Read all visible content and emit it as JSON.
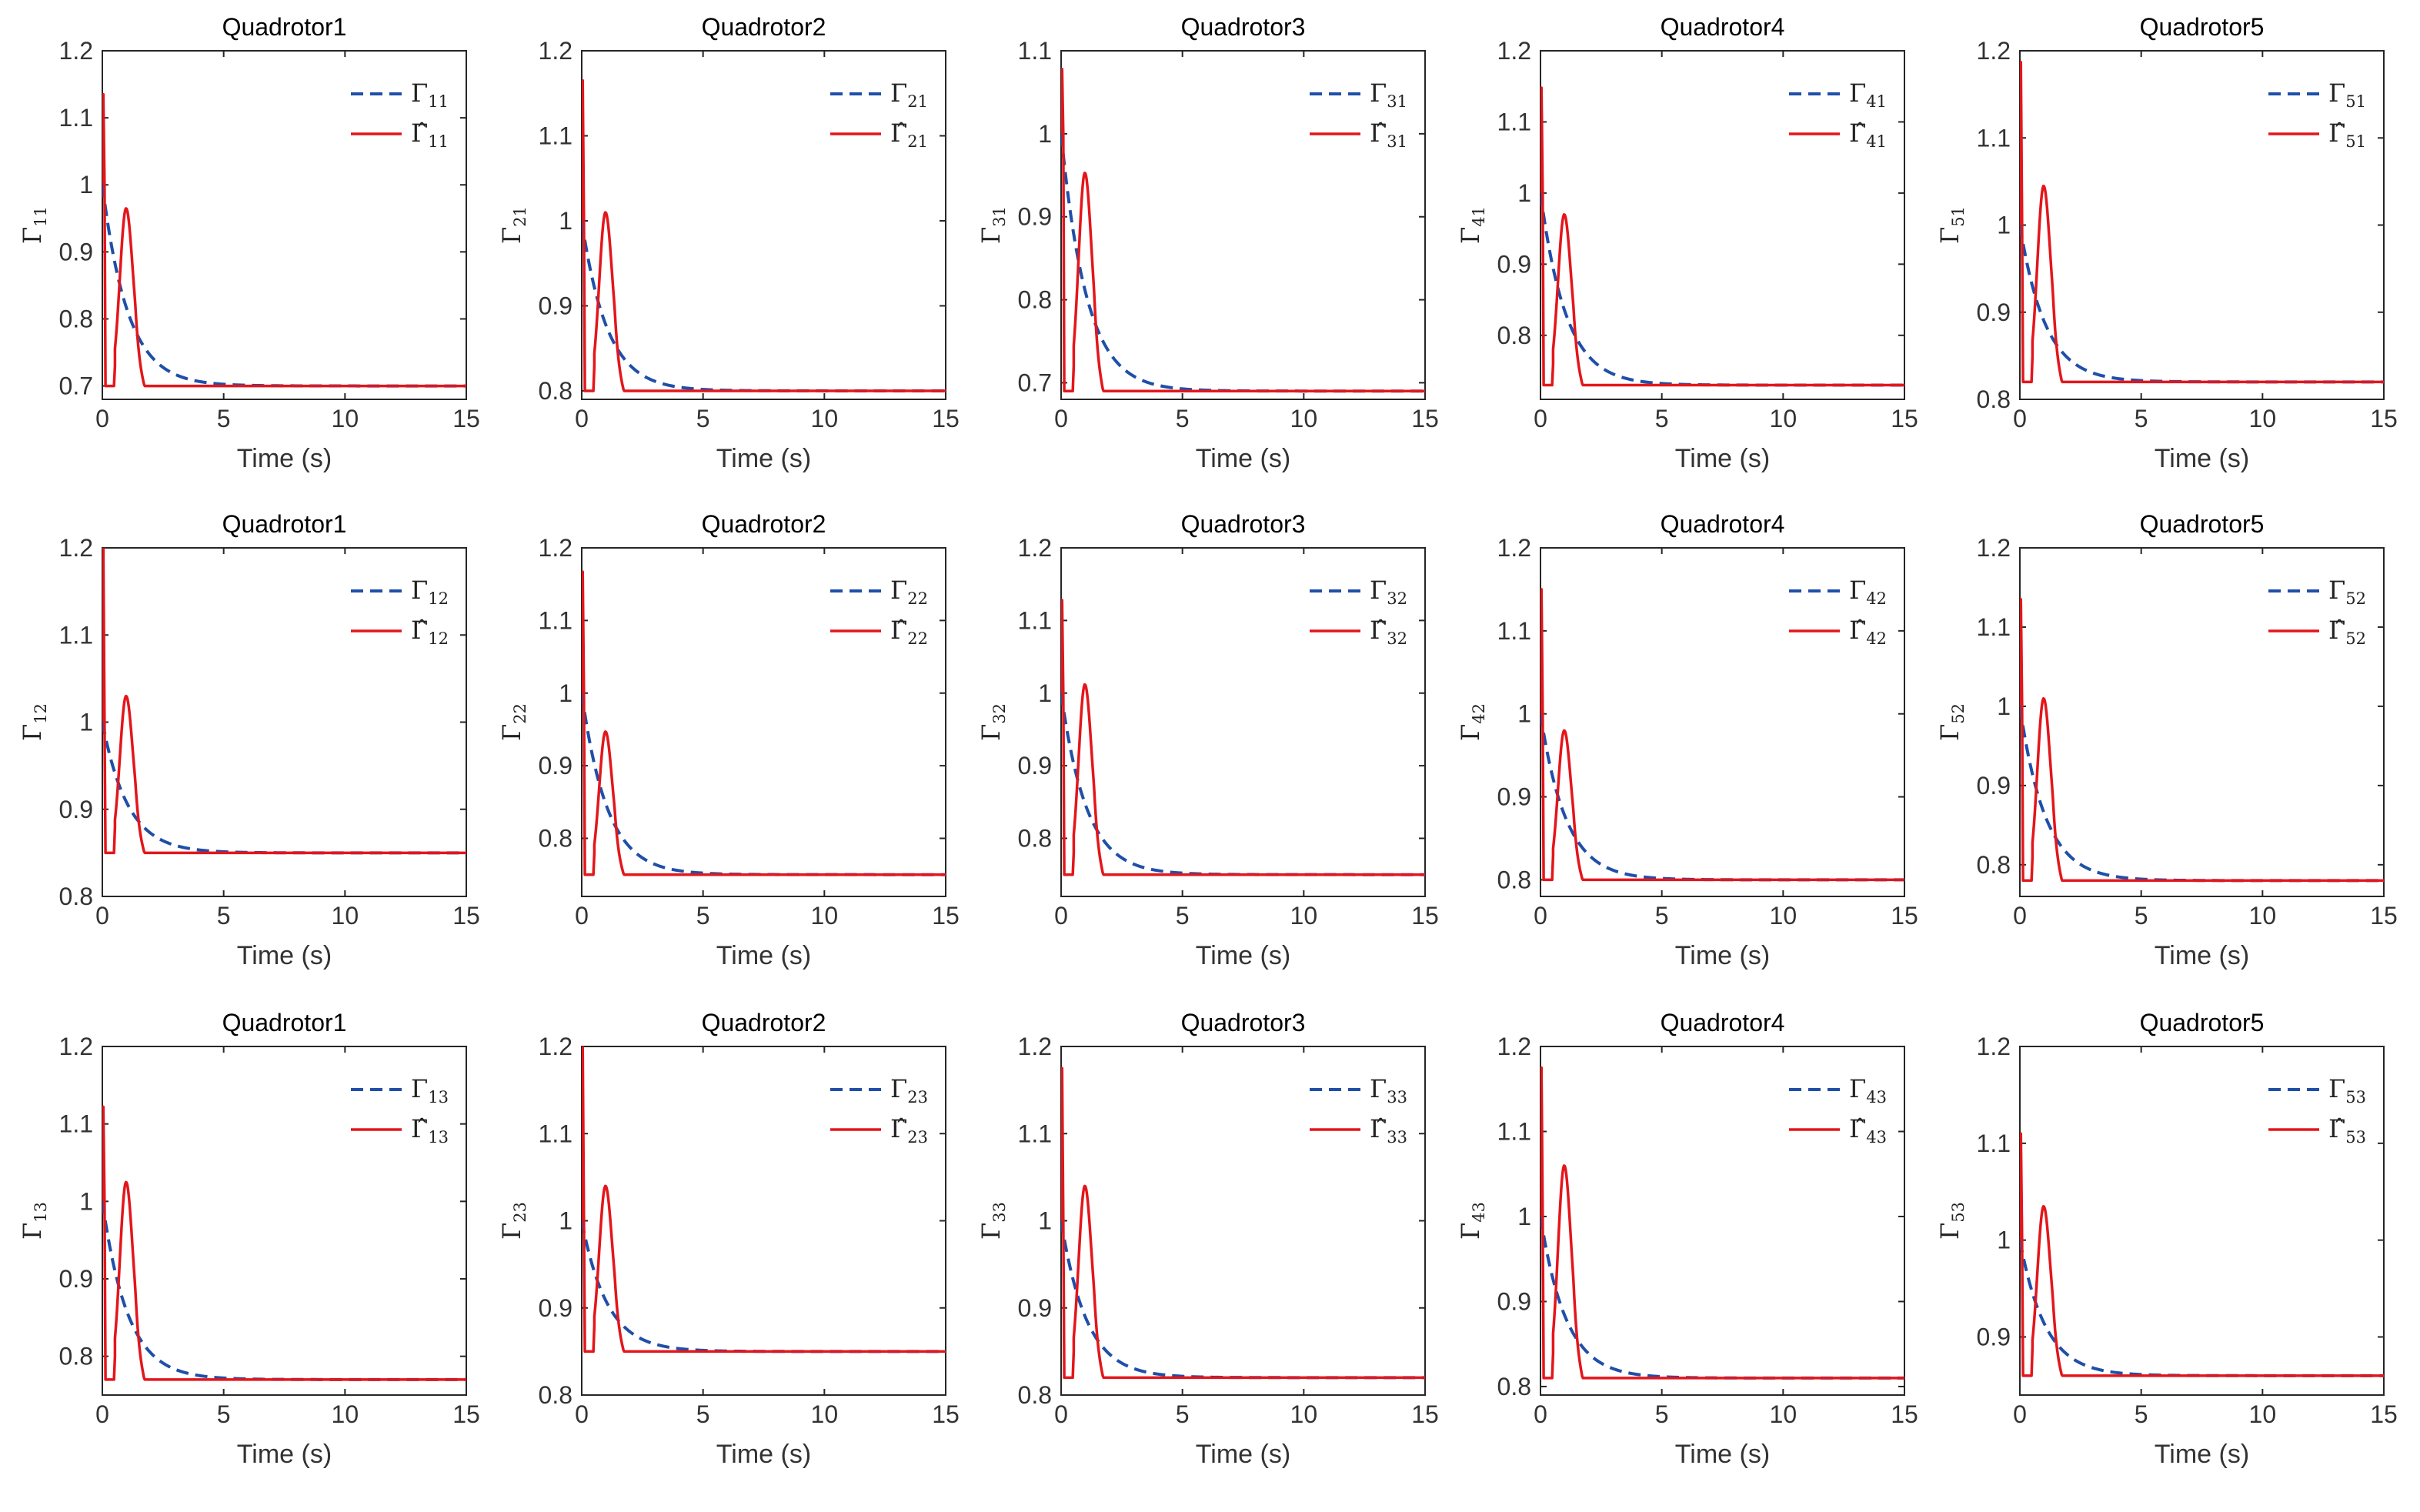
{
  "chart_data": {
    "type": "line",
    "layout": "3x5 grid of subplots",
    "x_label": "Time (s)",
    "x_ticks": [
      0,
      5,
      10,
      15
    ],
    "xlim": [
      0,
      15
    ],
    "gamma_symbol": "Γ",
    "hat_symbol": "Γ̂",
    "legend_position": "top-right",
    "series_styles": [
      {
        "name": "Γ",
        "style": "dashed",
        "color": "#1f4fa8"
      },
      {
        "name": "Γ̂",
        "style": "solid",
        "color": "#e3161b"
      }
    ],
    "subplots": [
      {
        "title": "Quadrotor1",
        "sub": "11",
        "ylim": [
          0.68,
          1.2
        ],
        "yticks": [
          0.7,
          0.8,
          0.9,
          1,
          1.1,
          1.2
        ],
        "final": 0.7,
        "spike": 1.135,
        "bump": 0.965
      },
      {
        "title": "Quadrotor2",
        "sub": "21",
        "ylim": [
          0.79,
          1.2
        ],
        "yticks": [
          0.8,
          0.9,
          1,
          1.1,
          1.2
        ],
        "final": 0.8,
        "spike": 1.165,
        "bump": 1.01
      },
      {
        "title": "Quadrotor3",
        "sub": "31",
        "ylim": [
          0.68,
          1.1
        ],
        "yticks": [
          0.7,
          0.8,
          0.9,
          1,
          1.1
        ],
        "final": 0.69,
        "spike": 1.078,
        "bump": 0.953
      },
      {
        "title": "Quadrotor4",
        "sub": "41",
        "ylim": [
          0.71,
          1.2
        ],
        "yticks": [
          0.8,
          0.9,
          1,
          1.1,
          1.2
        ],
        "final": 0.73,
        "spike": 1.148,
        "bump": 0.97
      },
      {
        "title": "Quadrotor5",
        "sub": "51",
        "ylim": [
          0.8,
          1.2
        ],
        "yticks": [
          0.8,
          0.9,
          1,
          1.1,
          1.2
        ],
        "final": 0.82,
        "spike": 1.187,
        "bump": 1.045
      },
      {
        "title": "Quadrotor1",
        "sub": "12",
        "ylim": [
          0.8,
          1.2
        ],
        "yticks": [
          0.8,
          0.9,
          1,
          1.1,
          1.2
        ],
        "final": 0.85,
        "spike": 1.2,
        "bump": 1.03
      },
      {
        "title": "Quadrotor2",
        "sub": "22",
        "ylim": [
          0.72,
          1.2
        ],
        "yticks": [
          0.8,
          0.9,
          1,
          1.1,
          1.2
        ],
        "final": 0.75,
        "spike": 1.167,
        "bump": 0.947
      },
      {
        "title": "Quadrotor3",
        "sub": "32",
        "ylim": [
          0.72,
          1.2
        ],
        "yticks": [
          0.8,
          0.9,
          1,
          1.1,
          1.2
        ],
        "final": 0.75,
        "spike": 1.128,
        "bump": 1.012
      },
      {
        "title": "Quadrotor4",
        "sub": "42",
        "ylim": [
          0.78,
          1.2
        ],
        "yticks": [
          0.8,
          0.9,
          1,
          1.1,
          1.2
        ],
        "final": 0.8,
        "spike": 1.15,
        "bump": 0.98
      },
      {
        "title": "Quadrotor5",
        "sub": "52",
        "ylim": [
          0.76,
          1.2
        ],
        "yticks": [
          0.8,
          0.9,
          1,
          1.1,
          1.2
        ],
        "final": 0.78,
        "spike": 1.135,
        "bump": 1.01
      },
      {
        "title": "Quadrotor1",
        "sub": "13",
        "ylim": [
          0.75,
          1.2
        ],
        "yticks": [
          0.8,
          0.9,
          1,
          1.1,
          1.2
        ],
        "final": 0.77,
        "spike": 1.122,
        "bump": 1.025
      },
      {
        "title": "Quadrotor2",
        "sub": "23",
        "ylim": [
          0.8,
          1.2
        ],
        "yticks": [
          0.8,
          0.9,
          1,
          1.1,
          1.2
        ],
        "final": 0.85,
        "spike": 1.2,
        "bump": 1.04
      },
      {
        "title": "Quadrotor3",
        "sub": "33",
        "ylim": [
          0.8,
          1.2
        ],
        "yticks": [
          0.8,
          0.9,
          1,
          1.1,
          1.2
        ],
        "final": 0.82,
        "spike": 1.175,
        "bump": 1.04
      },
      {
        "title": "Quadrotor4",
        "sub": "43",
        "ylim": [
          0.79,
          1.2
        ],
        "yticks": [
          0.8,
          0.9,
          1,
          1.1,
          1.2
        ],
        "final": 0.81,
        "spike": 1.175,
        "bump": 1.06
      },
      {
        "title": "Quadrotor5",
        "sub": "53",
        "ylim": [
          0.84,
          1.2
        ],
        "yticks": [
          0.9,
          1,
          1.1,
          1.2
        ],
        "final": 0.86,
        "spike": 1.11,
        "bump": 1.035
      }
    ]
  }
}
